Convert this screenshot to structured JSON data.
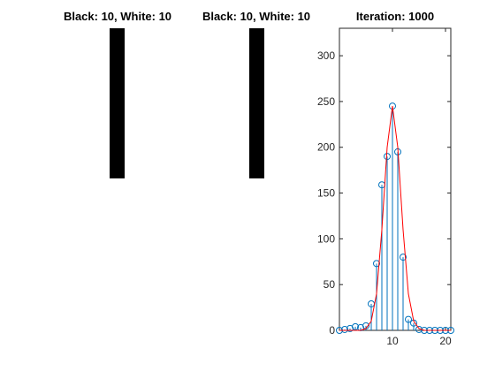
{
  "panels": {
    "left_title": "Black: 10, White: 10",
    "middle_title": "Black: 10, White: 10"
  },
  "chart_data": {
    "type": "stem",
    "title": "Iteration: 1000",
    "xlim": [
      0,
      21
    ],
    "ylim": [
      0,
      330
    ],
    "xticks": [
      10,
      20
    ],
    "yticks": [
      0,
      50,
      100,
      150,
      200,
      250,
      300
    ],
    "grid": false,
    "series": [
      {
        "type": "stem",
        "color": "#0072BD",
        "x": [
          0,
          1,
          2,
          3,
          4,
          5,
          6,
          7,
          8,
          9,
          10,
          11,
          12,
          13,
          14,
          15,
          16,
          17,
          18,
          19,
          20,
          21
        ],
        "values": [
          0,
          1,
          2,
          4,
          3,
          5,
          29,
          73,
          159,
          190,
          245,
          195,
          80,
          12,
          8,
          1,
          0,
          0,
          0,
          0,
          0,
          0
        ]
      },
      {
        "type": "line",
        "color": "#FF0000",
        "x": [
          0,
          1,
          2,
          3,
          4,
          5,
          6,
          7,
          8,
          9,
          10,
          11,
          12,
          13,
          14,
          15,
          16,
          17,
          18,
          19,
          20,
          21
        ],
        "values": [
          0,
          0,
          0,
          0,
          0,
          2,
          10,
          40,
          110,
          200,
          245,
          200,
          110,
          40,
          10,
          2,
          0,
          0,
          0,
          0,
          0,
          0
        ]
      }
    ]
  }
}
